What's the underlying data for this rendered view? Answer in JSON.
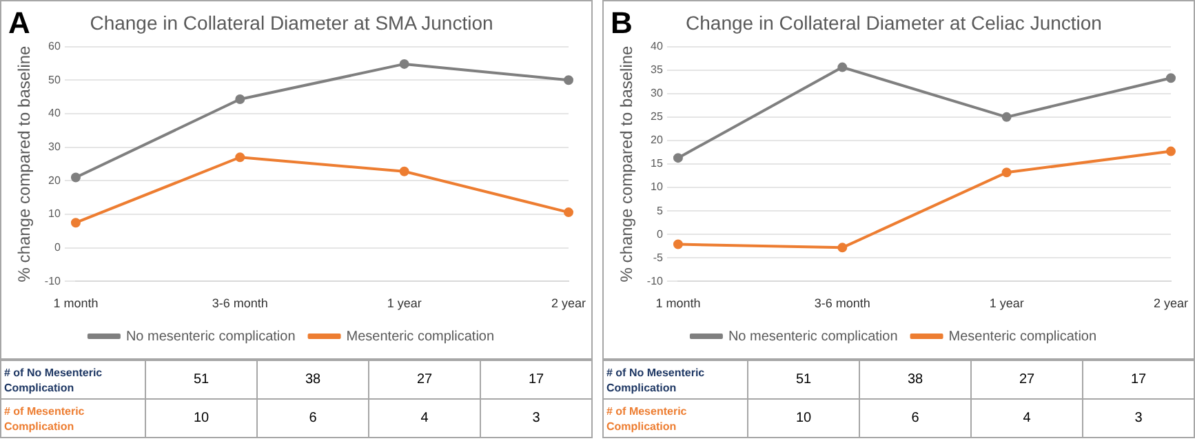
{
  "chart_data": [
    {
      "type": "line",
      "title": "Change in Collateral Diameter at SMA Junction",
      "ylabel": "% change compared to baseline",
      "categories": [
        "1 month",
        "3-6 month",
        "1 year",
        "2 year"
      ],
      "series": [
        {
          "name": "No mesenteric complication",
          "color": "#7f7f7f",
          "values": [
            21,
            44.3,
            54.8,
            50
          ]
        },
        {
          "name": "Mesenteric complication",
          "color": "#ed7d31",
          "values": [
            7.5,
            27,
            22.8,
            10.6
          ]
        }
      ],
      "ylim": [
        -10,
        60
      ],
      "yticks": [
        -10,
        0,
        10,
        20,
        30,
        40,
        50,
        60
      ],
      "grid": "y",
      "legend": "bottom",
      "marker": "circle",
      "line_style": "solid",
      "annotations": [
        "A",
        "# of No Mesenteric Complication",
        "51",
        "38",
        "27",
        "17",
        "# of Mesenteric Complication",
        "10",
        "6",
        "4",
        "3"
      ]
    },
    {
      "type": "line",
      "title": "Change in Collateral Diameter at Celiac Junction",
      "ylabel": "% change compared to baseline",
      "categories": [
        "1 month",
        "3-6 month",
        "1 year",
        "2 year"
      ],
      "series": [
        {
          "name": "No mesenteric complication",
          "color": "#7f7f7f",
          "values": [
            16.3,
            35.6,
            25,
            33.3
          ]
        },
        {
          "name": "Mesenteric complication",
          "color": "#ed7d31",
          "values": [
            -2.1,
            -2.8,
            13.2,
            17.7
          ]
        }
      ],
      "ylim": [
        -10,
        40
      ],
      "yticks": [
        -10,
        -5,
        0,
        5,
        10,
        15,
        20,
        25,
        30,
        35,
        40
      ],
      "grid": "y",
      "legend": "bottom",
      "marker": "circle",
      "line_style": "solid",
      "annotations": [
        "B",
        "# of No Mesenteric Complication",
        "51",
        "38",
        "27",
        "17",
        "# of Mesenteric Complication",
        "10",
        "6",
        "4",
        "3"
      ]
    }
  ]
}
